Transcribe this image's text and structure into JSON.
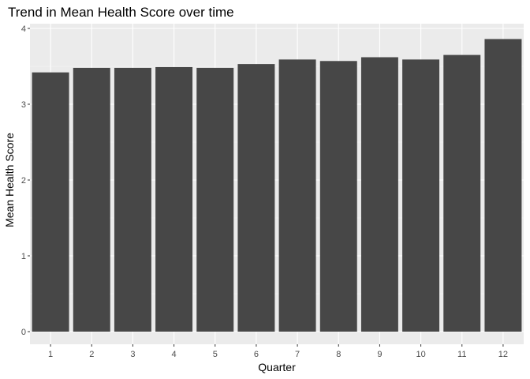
{
  "chart_data": {
    "type": "bar",
    "title": "Trend in Mean Health Score over time",
    "xlabel": "Quarter",
    "ylabel": "Mean Health Score",
    "categories": [
      "1",
      "2",
      "3",
      "4",
      "5",
      "6",
      "7",
      "8",
      "9",
      "10",
      "11",
      "12"
    ],
    "values": [
      3.42,
      3.48,
      3.48,
      3.49,
      3.48,
      3.53,
      3.59,
      3.57,
      3.62,
      3.59,
      3.65,
      3.86
    ],
    "ylim": [
      0,
      4
    ],
    "yticks": [
      0,
      1,
      2,
      3,
      4
    ],
    "grid": true,
    "legend": "none",
    "colors": {
      "bar": "#474747",
      "panel": "#ebebeb",
      "grid_major": "#ffffff",
      "grid_minor": "#f5f5f5",
      "tick": "#333333"
    }
  }
}
